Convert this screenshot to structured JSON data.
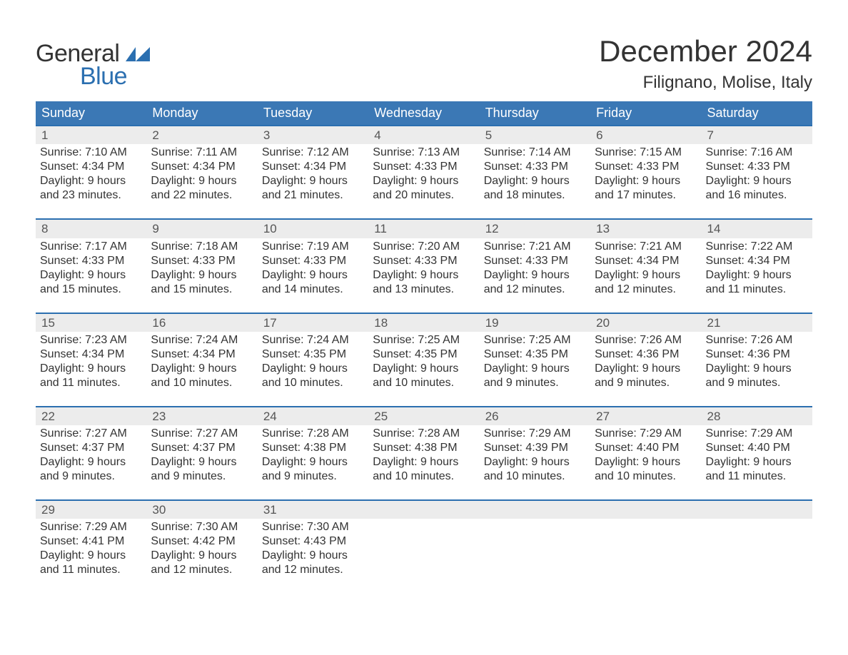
{
  "logo": {
    "general": "General",
    "blue": "Blue"
  },
  "title": {
    "month": "December 2024",
    "location": "Filignano, Molise, Italy"
  },
  "colors": {
    "header_bg": "#3b78b5",
    "header_text": "#ffffff",
    "daynum_bg": "#ececec",
    "daynum_border": "#2b6fb0",
    "text": "#333333",
    "logo_blue": "#2b6fb0"
  },
  "weekdays": [
    "Sunday",
    "Monday",
    "Tuesday",
    "Wednesday",
    "Thursday",
    "Friday",
    "Saturday"
  ],
  "weeks": [
    [
      {
        "n": "1",
        "sunrise": "Sunrise: 7:10 AM",
        "sunset": "Sunset: 4:34 PM",
        "d1": "Daylight: 9 hours",
        "d2": "and 23 minutes."
      },
      {
        "n": "2",
        "sunrise": "Sunrise: 7:11 AM",
        "sunset": "Sunset: 4:34 PM",
        "d1": "Daylight: 9 hours",
        "d2": "and 22 minutes."
      },
      {
        "n": "3",
        "sunrise": "Sunrise: 7:12 AM",
        "sunset": "Sunset: 4:34 PM",
        "d1": "Daylight: 9 hours",
        "d2": "and 21 minutes."
      },
      {
        "n": "4",
        "sunrise": "Sunrise: 7:13 AM",
        "sunset": "Sunset: 4:33 PM",
        "d1": "Daylight: 9 hours",
        "d2": "and 20 minutes."
      },
      {
        "n": "5",
        "sunrise": "Sunrise: 7:14 AM",
        "sunset": "Sunset: 4:33 PM",
        "d1": "Daylight: 9 hours",
        "d2": "and 18 minutes."
      },
      {
        "n": "6",
        "sunrise": "Sunrise: 7:15 AM",
        "sunset": "Sunset: 4:33 PM",
        "d1": "Daylight: 9 hours",
        "d2": "and 17 minutes."
      },
      {
        "n": "7",
        "sunrise": "Sunrise: 7:16 AM",
        "sunset": "Sunset: 4:33 PM",
        "d1": "Daylight: 9 hours",
        "d2": "and 16 minutes."
      }
    ],
    [
      {
        "n": "8",
        "sunrise": "Sunrise: 7:17 AM",
        "sunset": "Sunset: 4:33 PM",
        "d1": "Daylight: 9 hours",
        "d2": "and 15 minutes."
      },
      {
        "n": "9",
        "sunrise": "Sunrise: 7:18 AM",
        "sunset": "Sunset: 4:33 PM",
        "d1": "Daylight: 9 hours",
        "d2": "and 15 minutes."
      },
      {
        "n": "10",
        "sunrise": "Sunrise: 7:19 AM",
        "sunset": "Sunset: 4:33 PM",
        "d1": "Daylight: 9 hours",
        "d2": "and 14 minutes."
      },
      {
        "n": "11",
        "sunrise": "Sunrise: 7:20 AM",
        "sunset": "Sunset: 4:33 PM",
        "d1": "Daylight: 9 hours",
        "d2": "and 13 minutes."
      },
      {
        "n": "12",
        "sunrise": "Sunrise: 7:21 AM",
        "sunset": "Sunset: 4:33 PM",
        "d1": "Daylight: 9 hours",
        "d2": "and 12 minutes."
      },
      {
        "n": "13",
        "sunrise": "Sunrise: 7:21 AM",
        "sunset": "Sunset: 4:34 PM",
        "d1": "Daylight: 9 hours",
        "d2": "and 12 minutes."
      },
      {
        "n": "14",
        "sunrise": "Sunrise: 7:22 AM",
        "sunset": "Sunset: 4:34 PM",
        "d1": "Daylight: 9 hours",
        "d2": "and 11 minutes."
      }
    ],
    [
      {
        "n": "15",
        "sunrise": "Sunrise: 7:23 AM",
        "sunset": "Sunset: 4:34 PM",
        "d1": "Daylight: 9 hours",
        "d2": "and 11 minutes."
      },
      {
        "n": "16",
        "sunrise": "Sunrise: 7:24 AM",
        "sunset": "Sunset: 4:34 PM",
        "d1": "Daylight: 9 hours",
        "d2": "and 10 minutes."
      },
      {
        "n": "17",
        "sunrise": "Sunrise: 7:24 AM",
        "sunset": "Sunset: 4:35 PM",
        "d1": "Daylight: 9 hours",
        "d2": "and 10 minutes."
      },
      {
        "n": "18",
        "sunrise": "Sunrise: 7:25 AM",
        "sunset": "Sunset: 4:35 PM",
        "d1": "Daylight: 9 hours",
        "d2": "and 10 minutes."
      },
      {
        "n": "19",
        "sunrise": "Sunrise: 7:25 AM",
        "sunset": "Sunset: 4:35 PM",
        "d1": "Daylight: 9 hours",
        "d2": "and 9 minutes."
      },
      {
        "n": "20",
        "sunrise": "Sunrise: 7:26 AM",
        "sunset": "Sunset: 4:36 PM",
        "d1": "Daylight: 9 hours",
        "d2": "and 9 minutes."
      },
      {
        "n": "21",
        "sunrise": "Sunrise: 7:26 AM",
        "sunset": "Sunset: 4:36 PM",
        "d1": "Daylight: 9 hours",
        "d2": "and 9 minutes."
      }
    ],
    [
      {
        "n": "22",
        "sunrise": "Sunrise: 7:27 AM",
        "sunset": "Sunset: 4:37 PM",
        "d1": "Daylight: 9 hours",
        "d2": "and 9 minutes."
      },
      {
        "n": "23",
        "sunrise": "Sunrise: 7:27 AM",
        "sunset": "Sunset: 4:37 PM",
        "d1": "Daylight: 9 hours",
        "d2": "and 9 minutes."
      },
      {
        "n": "24",
        "sunrise": "Sunrise: 7:28 AM",
        "sunset": "Sunset: 4:38 PM",
        "d1": "Daylight: 9 hours",
        "d2": "and 9 minutes."
      },
      {
        "n": "25",
        "sunrise": "Sunrise: 7:28 AM",
        "sunset": "Sunset: 4:38 PM",
        "d1": "Daylight: 9 hours",
        "d2": "and 10 minutes."
      },
      {
        "n": "26",
        "sunrise": "Sunrise: 7:29 AM",
        "sunset": "Sunset: 4:39 PM",
        "d1": "Daylight: 9 hours",
        "d2": "and 10 minutes."
      },
      {
        "n": "27",
        "sunrise": "Sunrise: 7:29 AM",
        "sunset": "Sunset: 4:40 PM",
        "d1": "Daylight: 9 hours",
        "d2": "and 10 minutes."
      },
      {
        "n": "28",
        "sunrise": "Sunrise: 7:29 AM",
        "sunset": "Sunset: 4:40 PM",
        "d1": "Daylight: 9 hours",
        "d2": "and 11 minutes."
      }
    ],
    [
      {
        "n": "29",
        "sunrise": "Sunrise: 7:29 AM",
        "sunset": "Sunset: 4:41 PM",
        "d1": "Daylight: 9 hours",
        "d2": "and 11 minutes."
      },
      {
        "n": "30",
        "sunrise": "Sunrise: 7:30 AM",
        "sunset": "Sunset: 4:42 PM",
        "d1": "Daylight: 9 hours",
        "d2": "and 12 minutes."
      },
      {
        "n": "31",
        "sunrise": "Sunrise: 7:30 AM",
        "sunset": "Sunset: 4:43 PM",
        "d1": "Daylight: 9 hours",
        "d2": "and 12 minutes."
      },
      null,
      null,
      null,
      null
    ]
  ]
}
